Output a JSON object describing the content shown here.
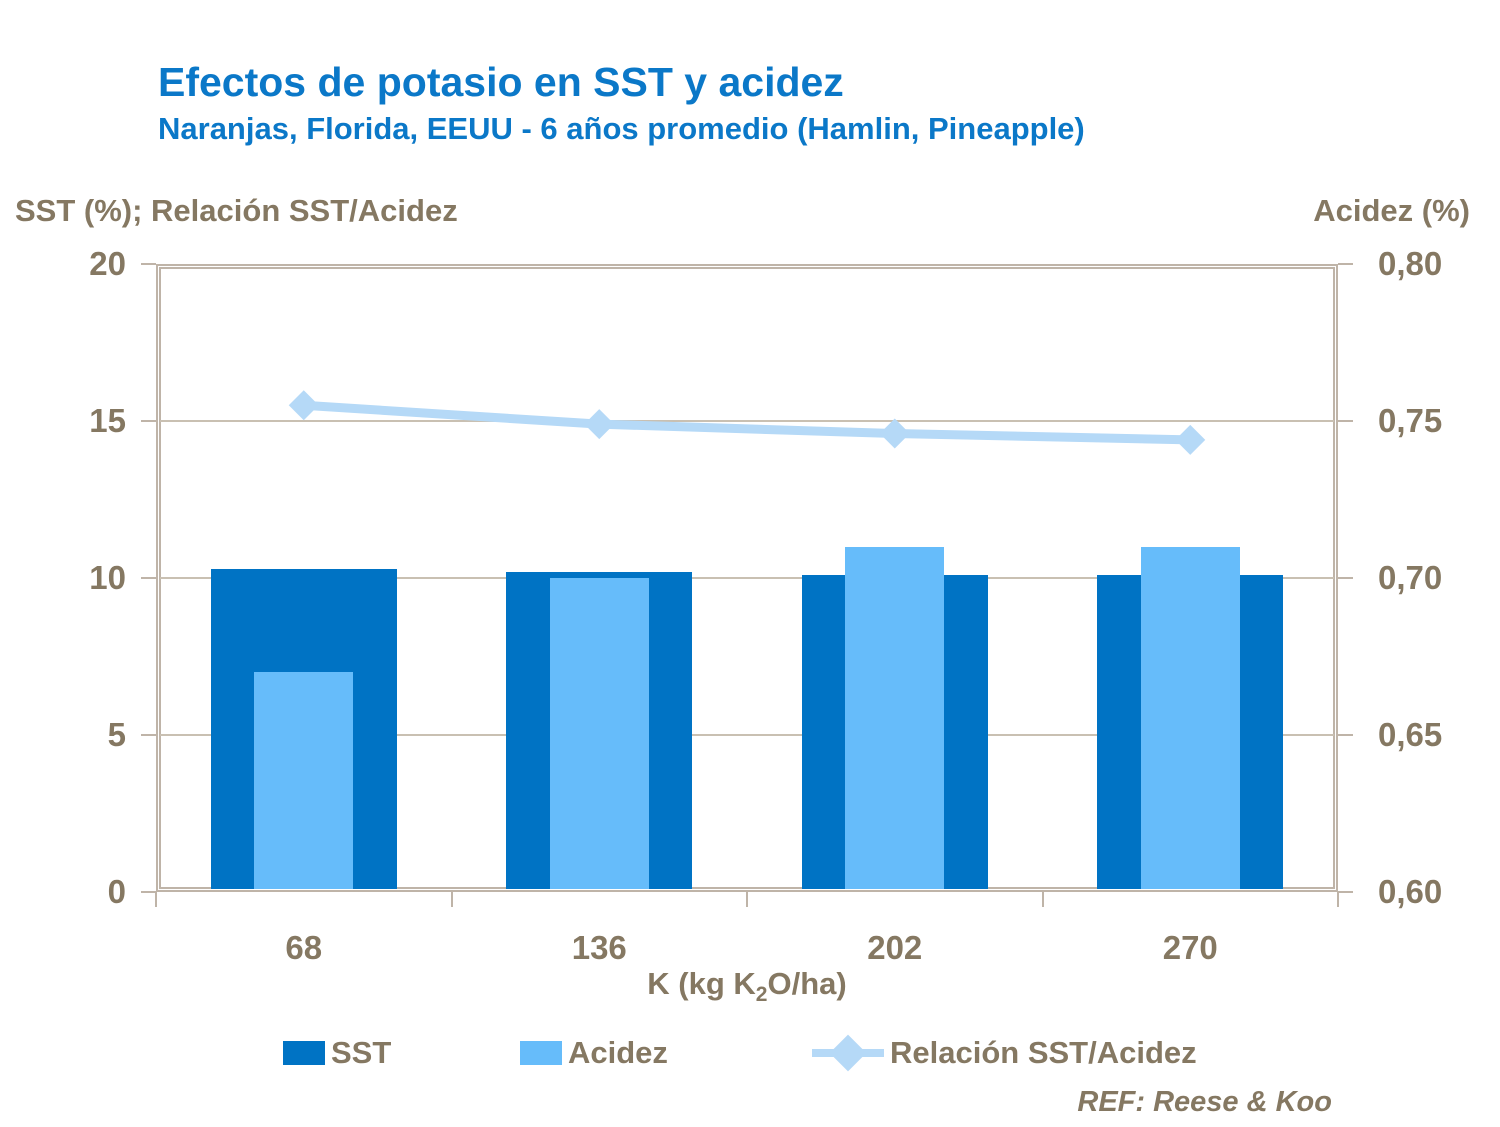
{
  "title": "Efectos de potasio en SST y acidez",
  "subtitle": "Naranjas, Florida, EEUU - 6 años promedio (Hamlin, Pineapple)",
  "left_axis_header": "SST (%); Relación SST/Acidez",
  "right_axis_header": "Acidez (%)",
  "x_title": {
    "prefix": "K (kg K",
    "sub": "2",
    "suffix": "O/ha)"
  },
  "footer_ref": "REF: Reese & Koo",
  "colors": {
    "title_blue": "#0B78C8",
    "text_brown": "#857862",
    "sst_bar": "#0073C4",
    "acidez_bar": "#66BCFA",
    "ratio_line": "#B5D9F7",
    "axis_border": "#BFB4A8",
    "gridline": "#C9C0B2",
    "background": "#FFFFFF"
  },
  "legend": {
    "items": [
      {
        "label": "SST",
        "marker": "square",
        "color": "#0073C4"
      },
      {
        "label": "Acidez",
        "marker": "square",
        "color": "#66BCFA"
      },
      {
        "label": "Relación SST/Acidez",
        "marker": "line-diamond",
        "color": "#B5D9F7"
      }
    ]
  },
  "chart_data": {
    "type": "bar",
    "subtype": "combo-bar-line-dual-axis",
    "title": "Efectos de potasio en SST y acidez",
    "subtitle": "Naranjas, Florida, EEUU - 6 años promedio (Hamlin, Pineapple)",
    "categories": [
      "68",
      "136",
      "202",
      "270"
    ],
    "series": [
      {
        "name": "SST",
        "type": "bar",
        "axis": "left",
        "color": "#0073C4",
        "values": [
          10.3,
          10.2,
          10.1,
          10.1
        ]
      },
      {
        "name": "Acidez",
        "type": "bar",
        "axis": "right",
        "color": "#66BCFA",
        "values": [
          0.67,
          0.7,
          0.71,
          0.71
        ]
      },
      {
        "name": "Relación SST/Acidez",
        "type": "line",
        "axis": "left",
        "color": "#B5D9F7",
        "marker": "diamond",
        "values": [
          15.5,
          14.9,
          14.6,
          14.4
        ]
      }
    ],
    "left_axis": {
      "label": "SST (%); Relación SST/Acidez",
      "min": 0,
      "max": 20,
      "step": 5,
      "ticks": [
        "0",
        "5",
        "10",
        "15",
        "20"
      ]
    },
    "right_axis": {
      "label": "Acidez (%)",
      "min": 0.6,
      "max": 0.8,
      "step": 0.05,
      "ticks": [
        "0,60",
        "0,65",
        "0,70",
        "0,75",
        "0,80"
      ]
    },
    "xlabel": "K (kg K2O/ha)",
    "grid": true,
    "legend_position": "bottom",
    "annotation": "REF: Reese & Koo"
  }
}
